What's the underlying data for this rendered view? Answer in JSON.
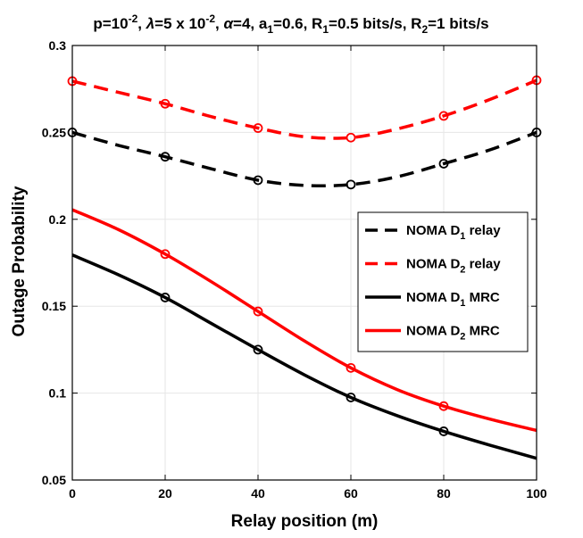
{
  "chart_data": {
    "type": "line",
    "title": {
      "parts": [
        {
          "t": "p=10"
        },
        {
          "t": "-2",
          "sup": true
        },
        {
          "t": ", "
        },
        {
          "t": "λ",
          "sym": true
        },
        {
          "t": "=5 x 10"
        },
        {
          "t": "-2",
          "sup": true
        },
        {
          "t": ", "
        },
        {
          "t": "α",
          "sym": true
        },
        {
          "t": "=4, a"
        },
        {
          "t": "1",
          "sub": true
        },
        {
          "t": "=0.6, R"
        },
        {
          "t": "1",
          "sub": true
        },
        {
          "t": "=0.5 bits/s, R"
        },
        {
          "t": "2",
          "sub": true
        },
        {
          "t": "=1 bits/s"
        }
      ]
    },
    "xlabel": "Relay position (m)",
    "ylabel": "Outage Probability",
    "xlim": [
      0,
      100
    ],
    "ylim": [
      0.05,
      0.3
    ],
    "xticks": [
      0,
      20,
      40,
      60,
      80,
      100
    ],
    "xtick_labels": [
      "0",
      "20",
      "40",
      "60",
      "80",
      "100"
    ],
    "yticks": [
      0.05,
      0.1,
      0.15,
      0.2,
      0.25,
      0.3
    ],
    "ytick_labels": [
      "0.05",
      "0.1",
      "0.15",
      "0.2",
      "0.25",
      "0.3"
    ],
    "grid": true,
    "legend_position": "right",
    "series": [
      {
        "name": "NOMA D1 relay",
        "legend": {
          "main": "NOMA D",
          "sub": "1",
          "tail": " relay"
        },
        "color": "#000000",
        "dash": true,
        "markers": "open-circle",
        "x": [
          0,
          10,
          20,
          30,
          40,
          50,
          60,
          70,
          80,
          90,
          100
        ],
        "y": [
          0.25,
          0.2425,
          0.236,
          0.229,
          0.2225,
          0.2195,
          0.22,
          0.2245,
          0.232,
          0.24,
          0.25
        ],
        "marker_x": [
          0,
          20,
          40,
          60,
          80,
          100
        ]
      },
      {
        "name": "NOMA D2 relay",
        "legend": {
          "main": "NOMA D",
          "sub": "2",
          "tail": " relay"
        },
        "color": "#ff0000",
        "dash": true,
        "markers": "open-circle",
        "x": [
          0,
          10,
          20,
          30,
          40,
          50,
          60,
          70,
          80,
          90,
          100
        ],
        "y": [
          0.2795,
          0.273,
          0.2665,
          0.259,
          0.2525,
          0.2475,
          0.247,
          0.252,
          0.2595,
          0.269,
          0.28
        ],
        "marker_x": [
          0,
          20,
          40,
          60,
          80,
          100
        ]
      },
      {
        "name": "NOMA D1 MRC",
        "legend": {
          "main": "NOMA D",
          "sub": "1",
          "tail": " MRC"
        },
        "color": "#000000",
        "dash": false,
        "markers": "open-circle",
        "x": [
          0,
          10,
          20,
          30,
          40,
          50,
          60,
          70,
          80,
          90,
          100
        ],
        "y": [
          0.1795,
          0.168,
          0.155,
          0.14,
          0.125,
          0.1105,
          0.0975,
          0.087,
          0.078,
          0.07,
          0.0625
        ],
        "marker_x": [
          20,
          40,
          60,
          80
        ]
      },
      {
        "name": "NOMA D2 MRC",
        "legend": {
          "main": "NOMA D",
          "sub": "2",
          "tail": " MRC"
        },
        "color": "#ff0000",
        "dash": false,
        "markers": "open-circle",
        "x": [
          0,
          10,
          20,
          30,
          40,
          50,
          60,
          70,
          80,
          90,
          100
        ],
        "y": [
          0.2055,
          0.194,
          0.18,
          0.164,
          0.147,
          0.13,
          0.1145,
          0.102,
          0.0925,
          0.085,
          0.0785
        ],
        "marker_x": [
          20,
          40,
          60,
          80
        ]
      }
    ]
  }
}
